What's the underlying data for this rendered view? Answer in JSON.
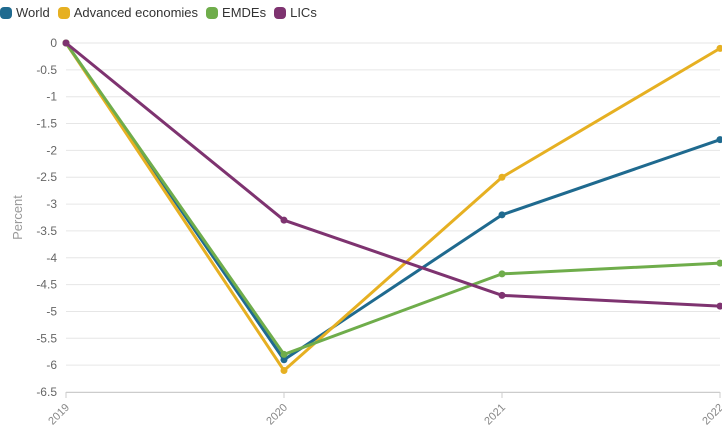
{
  "chart_data": {
    "type": "line",
    "x": [
      "2019",
      "2020",
      "2021",
      "2022"
    ],
    "ylabel": "Percent",
    "ylim": [
      -6.5,
      0
    ],
    "ytick_step": 0.5,
    "grid": true,
    "legend_position": "top-left",
    "series": [
      {
        "name": "World",
        "color": "#1f6a8f",
        "values": [
          0,
          -5.9,
          -3.2,
          -1.8
        ]
      },
      {
        "name": "Advanced economies",
        "color": "#e6b022",
        "values": [
          0,
          -6.1,
          -2.5,
          -0.1
        ]
      },
      {
        "name": "EMDEs",
        "color": "#6fad4b",
        "values": [
          0,
          -5.8,
          -4.3,
          -4.1
        ]
      },
      {
        "name": "LICs",
        "color": "#7e3370",
        "values": [
          0,
          -3.3,
          -4.7,
          -4.9
        ]
      }
    ]
  }
}
